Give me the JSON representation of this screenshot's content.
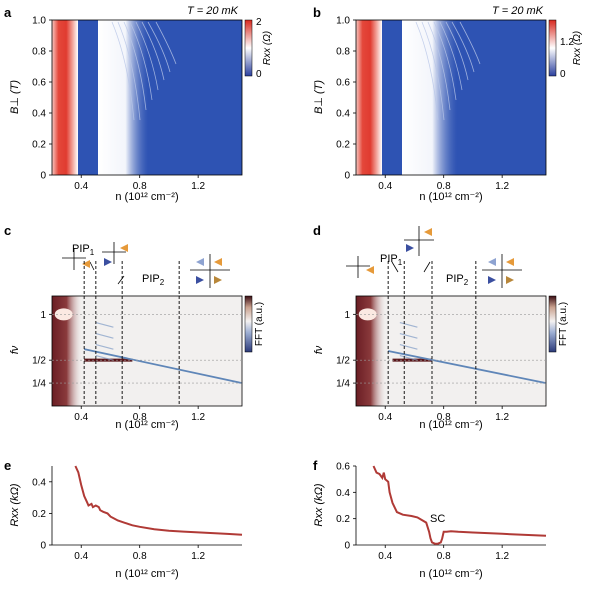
{
  "chart_data": [
    {
      "panel": "a",
      "type": "heatmap",
      "annotation": "T = 20 mK",
      "xlabel": "n (10^12 cm^-2)",
      "ylabel": "B⊥ (T)",
      "xlim": [
        0.2,
        1.5
      ],
      "ylim": [
        0,
        1.0
      ],
      "x_ticks": [
        "0.4",
        "0.8",
        "1.2"
      ],
      "y_ticks": [
        "0",
        "0.2",
        "0.4",
        "0.6",
        "0.8",
        "1.0"
      ],
      "colorbar": {
        "label": "Rxx (Ω)",
        "ticks": [
          "0",
          "2"
        ],
        "range": [
          0,
          2
        ],
        "colors": [
          "#2a3f9e",
          "#ffffff",
          "#d8281e"
        ]
      },
      "features": {
        "hot_edge_n": 0.25,
        "white_band_n": [
          0.3,
          0.55
        ],
        "background": "#2e53b3"
      }
    },
    {
      "panel": "b",
      "type": "heatmap",
      "annotation": "T = 20 mK",
      "xlabel": "n (10^12 cm^-2)",
      "ylabel": "B⊥ (T)",
      "xlim": [
        0.2,
        1.5
      ],
      "ylim": [
        0,
        1.0
      ],
      "x_ticks": [
        "0.4",
        "0.8",
        "1.2"
      ],
      "y_ticks": [
        "0",
        "0.2",
        "0.4",
        "0.6",
        "0.8",
        "1.0"
      ],
      "colorbar": {
        "label": "Rxx (Ω)",
        "ticks": [
          "0",
          "1.2"
        ],
        "range": [
          0,
          1.4
        ],
        "colors": [
          "#2a3f9e",
          "#ffffff",
          "#d8281e"
        ]
      },
      "features": {
        "hot_edge_n": 0.25,
        "white_band_n": [
          0.3,
          0.6
        ],
        "background": "#2e53b3"
      }
    },
    {
      "panel": "c",
      "type": "heatmap",
      "xlabel": "n (10^12 cm^-2)",
      "ylabel": "fν",
      "xlim": [
        0.2,
        1.5
      ],
      "ylim": [
        0,
        1.2
      ],
      "x_ticks": [
        "0.4",
        "0.8",
        "1.2"
      ],
      "y_ticks": [
        "1/4",
        "1/2",
        "1"
      ],
      "y_tick_values": [
        0.25,
        0.5,
        1.0
      ],
      "colorbar": {
        "label": "FFT (a.u.)"
      },
      "dashed_lines_n": [
        0.42,
        0.5,
        0.68,
        1.07
      ],
      "region_labels": [
        {
          "text": "PIP",
          "sub": "1"
        },
        {
          "text": "PIP",
          "sub": "2"
        }
      ],
      "lines": [
        {
          "from": [
            0.42,
            0.5
          ],
          "to": [
            0.75,
            0.5
          ]
        },
        {
          "from": [
            0.42,
            0.62
          ],
          "to": [
            1.5,
            0.25
          ]
        }
      ]
    },
    {
      "panel": "d",
      "type": "heatmap",
      "xlabel": "n (10^12 cm^-2)",
      "ylabel": "fν",
      "xlim": [
        0.2,
        1.5
      ],
      "ylim": [
        0,
        1.2
      ],
      "x_ticks": [
        "0.4",
        "0.8",
        "1.2"
      ],
      "y_ticks": [
        "1/4",
        "1/2",
        "1"
      ],
      "y_tick_values": [
        0.25,
        0.5,
        1.0
      ],
      "colorbar": {
        "label": "FFT (a.u.)"
      },
      "dashed_lines_n": [
        0.42,
        0.53,
        0.72,
        1.02
      ],
      "region_labels": [
        {
          "text": "PIP",
          "sub": "1"
        },
        {
          "text": "PIP",
          "sub": "2"
        }
      ],
      "lines": [
        {
          "from": [
            0.45,
            0.5
          ],
          "to": [
            0.72,
            0.5
          ]
        },
        {
          "from": [
            0.42,
            0.6
          ],
          "to": [
            1.5,
            0.25
          ]
        }
      ]
    },
    {
      "panel": "e",
      "type": "line",
      "xlabel": "n (10^12 cm^-2)",
      "ylabel": "Rxx (kΩ)",
      "xlim": [
        0.2,
        1.5
      ],
      "ylim": [
        0,
        0.5
      ],
      "x_ticks": [
        "0.4",
        "0.8",
        "1.2"
      ],
      "y_ticks": [
        "0",
        "0.2",
        "0.4"
      ],
      "color": "#b03a36",
      "x": [
        0.36,
        0.38,
        0.4,
        0.42,
        0.44,
        0.45,
        0.47,
        0.48,
        0.5,
        0.52,
        0.53,
        0.55,
        0.58,
        0.6,
        0.62,
        0.65,
        0.7,
        0.75,
        0.8,
        0.9,
        1.0,
        1.1,
        1.2,
        1.3,
        1.4,
        1.5
      ],
      "y": [
        0.5,
        0.46,
        0.38,
        0.31,
        0.27,
        0.25,
        0.26,
        0.24,
        0.25,
        0.24,
        0.22,
        0.21,
        0.2,
        0.18,
        0.17,
        0.155,
        0.14,
        0.125,
        0.115,
        0.1,
        0.09,
        0.085,
        0.08,
        0.075,
        0.07,
        0.065
      ]
    },
    {
      "panel": "f",
      "type": "line",
      "xlabel": "n (10^12 cm^-2)",
      "ylabel": "Rxx (kΩ)",
      "xlim": [
        0.2,
        1.5
      ],
      "ylim": [
        0,
        0.6
      ],
      "x_ticks": [
        "0.4",
        "0.8",
        "1.2"
      ],
      "y_ticks": [
        "0",
        "0.2",
        "0.4",
        "0.6"
      ],
      "color": "#b03a36",
      "annotation": "SC",
      "x": [
        0.32,
        0.34,
        0.36,
        0.38,
        0.39,
        0.4,
        0.42,
        0.43,
        0.45,
        0.48,
        0.52,
        0.58,
        0.62,
        0.65,
        0.68,
        0.7,
        0.71,
        0.72,
        0.74,
        0.76,
        0.78,
        0.79,
        0.8,
        0.82,
        0.85,
        0.9,
        1.0,
        1.1,
        1.2,
        1.3,
        1.4,
        1.5
      ],
      "y": [
        0.6,
        0.55,
        0.54,
        0.51,
        0.55,
        0.5,
        0.48,
        0.4,
        0.32,
        0.25,
        0.23,
        0.22,
        0.21,
        0.19,
        0.17,
        0.1,
        0.05,
        0.02,
        0.01,
        0.01,
        0.02,
        0.05,
        0.1,
        0.1,
        0.105,
        0.1,
        0.095,
        0.09,
        0.085,
        0.08,
        0.075,
        0.07
      ]
    }
  ]
}
